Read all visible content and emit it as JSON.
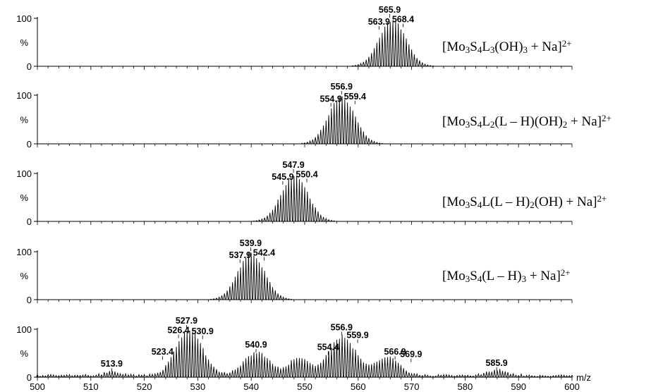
{
  "chart_data": [
    {
      "type": "line",
      "ylabel": "%",
      "yticks": [
        "0",
        "100"
      ],
      "xlim": [
        500,
        600
      ],
      "envelope": {
        "center": 566.4,
        "half_width": 5.5,
        "shape": "isotope-cluster",
        "spacing": 0.5
      },
      "peak_labels": [
        {
          "text": "565.9",
          "x": 565.9,
          "y": 100
        },
        {
          "text": "563.9",
          "x": 563.9,
          "y": 75
        },
        {
          "text": "568.4",
          "x": 568.4,
          "y": 80
        }
      ],
      "formula": {
        "parts": [
          {
            "t": "[Mo"
          },
          {
            "t": "3",
            "sub": true
          },
          {
            "t": "S"
          },
          {
            "t": "4",
            "sub": true
          },
          {
            "t": "L"
          },
          {
            "t": "3",
            "sub": true
          },
          {
            "t": "(OH)"
          },
          {
            "t": "3",
            "sub": true
          },
          {
            "t": " + Na]"
          },
          {
            "t": "2+",
            "sup": true
          }
        ]
      }
    },
    {
      "type": "line",
      "ylabel": "%",
      "yticks": [
        "0",
        "100"
      ],
      "xlim": [
        500,
        600
      ],
      "envelope": {
        "center": 556.9,
        "half_width": 5.5,
        "shape": "isotope-cluster",
        "spacing": 0.5
      },
      "peak_labels": [
        {
          "text": "556.9",
          "x": 556.9,
          "y": 100
        },
        {
          "text": "554.9",
          "x": 554.9,
          "y": 75
        },
        {
          "text": "559.4",
          "x": 559.4,
          "y": 80
        }
      ],
      "formula": {
        "parts": [
          {
            "t": "[Mo"
          },
          {
            "t": "3",
            "sub": true
          },
          {
            "t": "S"
          },
          {
            "t": "4",
            "sub": true
          },
          {
            "t": "L"
          },
          {
            "t": "2",
            "sub": true
          },
          {
            "t": "(L – H)(OH)"
          },
          {
            "t": "2",
            "sub": true
          },
          {
            "t": " + Na]"
          },
          {
            "t": "2+",
            "sup": true
          }
        ]
      }
    },
    {
      "type": "line",
      "ylabel": "%",
      "yticks": [
        "0",
        "100"
      ],
      "xlim": [
        500,
        600
      ],
      "envelope": {
        "center": 548.1,
        "half_width": 5.5,
        "shape": "isotope-cluster",
        "spacing": 0.5
      },
      "peak_labels": [
        {
          "text": "547.9",
          "x": 547.9,
          "y": 100
        },
        {
          "text": "545.9",
          "x": 545.9,
          "y": 75
        },
        {
          "text": "550.4",
          "x": 550.4,
          "y": 80
        }
      ],
      "formula": {
        "parts": [
          {
            "t": "[Mo"
          },
          {
            "t": "3",
            "sub": true
          },
          {
            "t": "S"
          },
          {
            "t": "4",
            "sub": true
          },
          {
            "t": "L(L – H)"
          },
          {
            "t": "2",
            "sub": true
          },
          {
            "t": "(OH) + Na]"
          },
          {
            "t": "2+",
            "sup": true
          }
        ]
      }
    },
    {
      "type": "line",
      "ylabel": "%",
      "yticks": [
        "0",
        "100"
      ],
      "xlim": [
        500,
        600
      ],
      "envelope": {
        "center": 540.0,
        "half_width": 5.5,
        "shape": "isotope-cluster",
        "spacing": 0.5
      },
      "peak_labels": [
        {
          "text": "539.9",
          "x": 539.9,
          "y": 100
        },
        {
          "text": "537.9",
          "x": 537.9,
          "y": 75
        },
        {
          "text": "542.4",
          "x": 542.4,
          "y": 80
        }
      ],
      "formula": {
        "parts": [
          {
            "t": "[Mo"
          },
          {
            "t": "3",
            "sub": true
          },
          {
            "t": "S"
          },
          {
            "t": "4",
            "sub": true
          },
          {
            "t": "(L – H)"
          },
          {
            "t": "3",
            "sub": true
          },
          {
            "t": " + Na]"
          },
          {
            "t": "2+",
            "sup": true
          }
        ]
      }
    },
    {
      "type": "line",
      "ylabel": "%",
      "yticks": [
        "0",
        "100"
      ],
      "xlabel": "m/z",
      "xlim": [
        500,
        600
      ],
      "xticks": [
        500,
        510,
        520,
        530,
        540,
        550,
        560,
        570,
        580,
        590,
        600
      ],
      "baseline_noise": 6,
      "envelopes": [
        {
          "center": 528.4,
          "half_width": 5.5,
          "height": 100
        },
        {
          "center": 541.0,
          "half_width": 5.5,
          "height": 50
        },
        {
          "center": 557.0,
          "half_width": 5.5,
          "height": 86
        },
        {
          "center": 565.5,
          "half_width": 5.0,
          "height": 40
        },
        {
          "center": 549.0,
          "half_width": 4.0,
          "height": 40
        },
        {
          "center": 514.0,
          "half_width": 3.0,
          "height": 10
        },
        {
          "center": 586.0,
          "half_width": 4.0,
          "height": 12
        }
      ],
      "peak_labels": [
        {
          "text": "527.9",
          "x": 527.9,
          "y": 100
        },
        {
          "text": "526.4",
          "x": 526.4,
          "y": 80
        },
        {
          "text": "530.9",
          "x": 530.9,
          "y": 78
        },
        {
          "text": "523.4",
          "x": 523.4,
          "y": 35
        },
        {
          "text": "513.9",
          "x": 513.9,
          "y": 10
        },
        {
          "text": "540.9",
          "x": 540.9,
          "y": 50
        },
        {
          "text": "554.4",
          "x": 554.4,
          "y": 45
        },
        {
          "text": "556.9",
          "x": 556.9,
          "y": 86
        },
        {
          "text": "559.9",
          "x": 559.9,
          "y": 70
        },
        {
          "text": "566.9",
          "x": 566.9,
          "y": 35
        },
        {
          "text": "569.9",
          "x": 569.9,
          "y": 30
        },
        {
          "text": "585.9",
          "x": 585.9,
          "y": 12
        }
      ]
    }
  ]
}
